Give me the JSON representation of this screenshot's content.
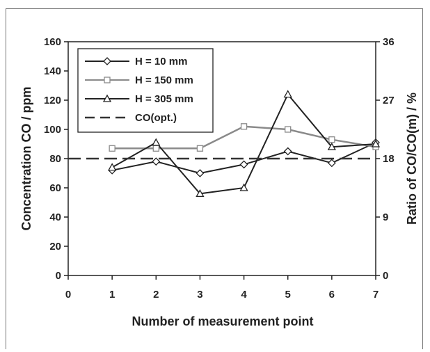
{
  "chart_data": {
    "type": "line",
    "xlabel": "Number of measurement point",
    "ylabel": "Concentration CO / ppm",
    "y2label": "Ratio of CO/CO(m) / %",
    "xlim": [
      0,
      7
    ],
    "ylim": [
      0,
      160
    ],
    "y2lim": [
      0,
      36
    ],
    "x_ticks": [
      "0",
      "1",
      "2",
      "3",
      "4",
      "5",
      "6",
      "7"
    ],
    "y_ticks": [
      "0",
      "20",
      "40",
      "60",
      "80",
      "100",
      "120",
      "140",
      "160"
    ],
    "y2_ticks": [
      "0",
      "9",
      "18",
      "27",
      "36"
    ],
    "grid": false,
    "legend_position": "top-left",
    "x": [
      1,
      2,
      3,
      4,
      5,
      6,
      7
    ],
    "series": [
      {
        "name": "H = 10 mm",
        "marker": "diamond",
        "color": "#222222",
        "values": [
          72,
          78,
          70,
          76,
          85,
          77,
          91
        ]
      },
      {
        "name": "H = 150 mm",
        "marker": "square",
        "color": "#8a8a8a",
        "values": [
          87,
          87,
          87,
          102,
          100,
          93,
          88
        ]
      },
      {
        "name": "H = 305 mm",
        "marker": "triangle",
        "color": "#222222",
        "values": [
          74,
          91,
          56,
          60,
          124,
          88,
          90
        ]
      },
      {
        "name": "CO(opt.)",
        "marker": "none",
        "style": "dashed",
        "color": "#333333",
        "constant": 80
      }
    ]
  }
}
